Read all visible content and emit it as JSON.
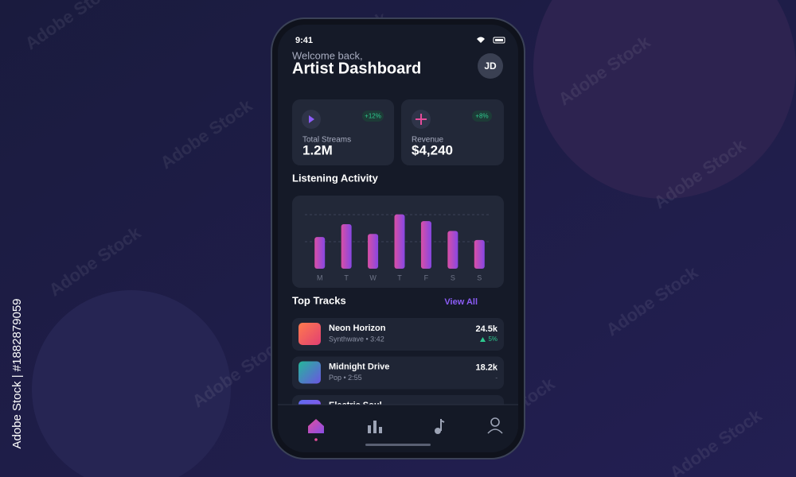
{
  "status_bar": {
    "time": "9:41"
  },
  "header": {
    "greeting": "Welcome back,",
    "title": "Artist Dashboard",
    "avatar": "JD"
  },
  "stats": [
    {
      "label": "Total Streams",
      "value": "1.2M",
      "change": "+12%"
    },
    {
      "label": "Revenue",
      "value": "$4,240",
      "change": "+8%"
    }
  ],
  "listening_activity": {
    "title": "Listening Activity",
    "type": "bar",
    "categories": [
      "M",
      "T",
      "W",
      "T",
      "F",
      "S",
      "S"
    ],
    "values": [
      42,
      59,
      46,
      72,
      63,
      50,
      38
    ],
    "ylim": [
      0,
      80
    ]
  },
  "top_tracks": {
    "title": "Top Tracks",
    "action": "View All",
    "tracks": [
      {
        "title": "Neon Horizon",
        "subtitle": "Synthwave • 3:42",
        "plays": "24.5k",
        "change": "5%"
      },
      {
        "title": "Midnight Drive",
        "subtitle": "Pop • 2:55",
        "plays": "18.2k",
        "change": "-"
      },
      {
        "title": "Electric Soul"
      }
    ]
  },
  "watermark": {
    "text": "Adobe Stock",
    "side": "Adobe Stock | #1882879059"
  }
}
